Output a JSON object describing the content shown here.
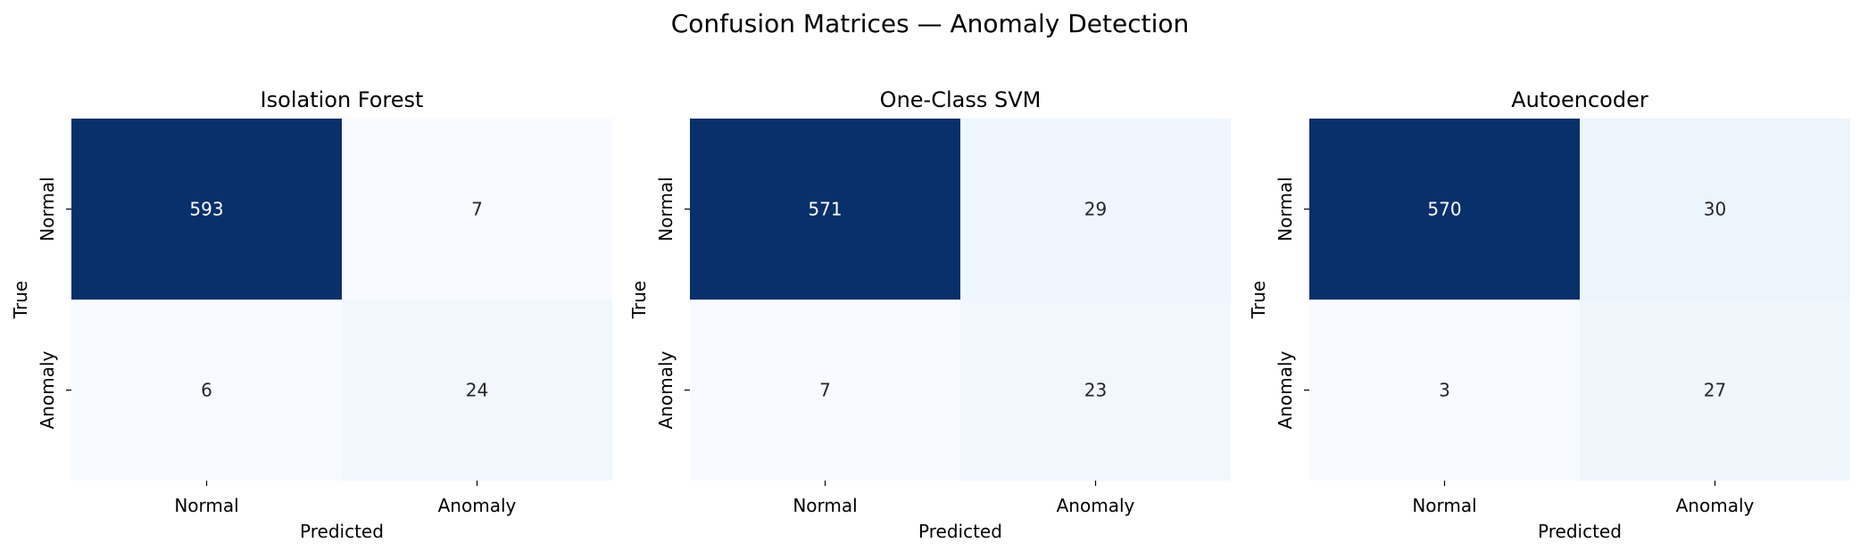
{
  "figure": {
    "title": "Confusion Matrices — Anomaly Detection"
  },
  "chart_data": [
    {
      "type": "heatmap",
      "title": "Isolation Forest",
      "xlabel": "Predicted",
      "ylabel": "True",
      "x_categories": [
        "Normal",
        "Anomaly"
      ],
      "y_categories": [
        "Normal",
        "Anomaly"
      ],
      "values": [
        [
          593,
          7
        ],
        [
          6,
          24
        ]
      ],
      "colormap": "Blues",
      "colorbar": false
    },
    {
      "type": "heatmap",
      "title": "One-Class SVM",
      "xlabel": "Predicted",
      "ylabel": "True",
      "x_categories": [
        "Normal",
        "Anomaly"
      ],
      "y_categories": [
        "Normal",
        "Anomaly"
      ],
      "values": [
        [
          571,
          29
        ],
        [
          7,
          23
        ]
      ],
      "colormap": "Blues",
      "colorbar": false
    },
    {
      "type": "heatmap",
      "title": "Autoencoder",
      "xlabel": "Predicted",
      "ylabel": "True",
      "x_categories": [
        "Normal",
        "Anomaly"
      ],
      "y_categories": [
        "Normal",
        "Anomaly"
      ],
      "values": [
        [
          570,
          30
        ],
        [
          3,
          27
        ]
      ],
      "colormap": "Blues",
      "colorbar": false
    }
  ]
}
